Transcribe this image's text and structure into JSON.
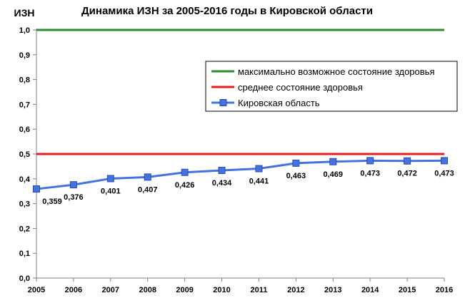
{
  "chart_data": {
    "type": "line",
    "title": "Динамика ИЗН за 2005-2016 годы в Кировской области",
    "ylabel": "ИЗН",
    "xlabel": "",
    "x": [
      "2005",
      "2006",
      "2007",
      "2008",
      "2009",
      "2010",
      "2011",
      "2012",
      "2013",
      "2014",
      "2015",
      "2016"
    ],
    "y_ticks": [
      "0,0",
      "0,1",
      "0,2",
      "0,3",
      "0,4",
      "0,5",
      "0,6",
      "0,7",
      "0,8",
      "0,9",
      "1,0"
    ],
    "ylim": [
      0,
      1
    ],
    "grid": false,
    "legend_position": "right",
    "series": [
      {
        "name": "максимально возможное состояние здоровья",
        "color": "#2e8b2e",
        "values": [
          1,
          1,
          1,
          1,
          1,
          1,
          1,
          1,
          1,
          1,
          1,
          1
        ],
        "marker": "none"
      },
      {
        "name": "среднее состояние здоровья",
        "color": "#e02020",
        "values": [
          0.5,
          0.5,
          0.5,
          0.5,
          0.5,
          0.5,
          0.5,
          0.5,
          0.5,
          0.5,
          0.5,
          0.5
        ],
        "marker": "none"
      },
      {
        "name": "Кировская область",
        "color": "#4472e0",
        "values": [
          0.359,
          0.376,
          0.401,
          0.407,
          0.426,
          0.434,
          0.441,
          0.463,
          0.469,
          0.473,
          0.472,
          0.473
        ],
        "data_labels": [
          "0,359",
          "0,376",
          "0,401",
          "0,407",
          "0,426",
          "0,434",
          "0,441",
          "0,463",
          "0,469",
          "0,473",
          "0,472",
          "0,473"
        ],
        "marker": "square"
      }
    ]
  }
}
